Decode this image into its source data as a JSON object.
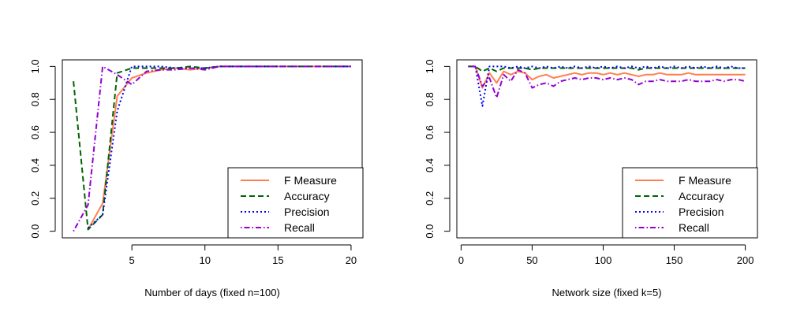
{
  "chart_data": [
    {
      "type": "line",
      "xlabel": "Number of days (fixed n=100)",
      "ylabel": "",
      "xlim": [
        0.24,
        20.76
      ],
      "ylim": [
        -0.04,
        1.04
      ],
      "xticks": [
        5,
        10,
        15,
        20
      ],
      "yticks": [
        0.0,
        0.2,
        0.4,
        0.6,
        0.8,
        1.0
      ],
      "xtick_labels": [
        "5",
        "10",
        "15",
        "20"
      ],
      "ytick_labels": [
        "0.0",
        "0.2",
        "0.4",
        "0.6",
        "0.8",
        "1.0"
      ],
      "grid": false,
      "legend_position": "bottom-right",
      "series": [
        {
          "name": "F Measure",
          "color": "#ff7f50",
          "dash": "solid",
          "x": [
            2,
            3,
            4,
            5,
            6,
            7,
            8,
            9,
            10,
            11,
            12,
            13,
            14,
            15,
            16,
            17,
            18,
            19,
            20
          ],
          "y": [
            0.01,
            0.17,
            0.82,
            0.93,
            0.96,
            0.98,
            0.99,
            0.98,
            0.99,
            1.0,
            1.0,
            1.0,
            1.0,
            1.0,
            1.0,
            1.0,
            1.0,
            1.0,
            1.0
          ]
        },
        {
          "name": "Accuracy",
          "color": "#006400",
          "dash": "longdash",
          "x": [
            1,
            2,
            3,
            4,
            5,
            6,
            7,
            8,
            9,
            10,
            11,
            12,
            13,
            14,
            15,
            16,
            17,
            18,
            19,
            20
          ],
          "y": [
            0.91,
            0.01,
            0.1,
            0.96,
            0.99,
            0.99,
            0.99,
            0.99,
            1.0,
            0.99,
            1.0,
            1.0,
            1.0,
            1.0,
            1.0,
            1.0,
            1.0,
            1.0,
            1.0,
            1.0
          ]
        },
        {
          "name": "Precision",
          "color": "#0000ee",
          "dash": "dotted",
          "x": [
            2,
            3,
            4,
            5,
            6,
            7,
            8,
            9,
            10,
            11,
            12,
            13,
            14,
            15,
            16,
            17,
            18,
            19,
            20
          ],
          "y": [
            0.02,
            0.1,
            0.73,
            1.0,
            1.0,
            1.0,
            0.99,
            0.99,
            0.99,
            1.0,
            1.0,
            1.0,
            1.0,
            1.0,
            1.0,
            1.0,
            1.0,
            1.0,
            1.0
          ]
        },
        {
          "name": "Recall",
          "color": "#9400d3",
          "dash": "dotdash",
          "x": [
            1,
            2,
            3,
            4,
            5,
            6,
            7,
            8,
            9,
            10,
            11,
            12,
            13,
            14,
            15,
            16,
            17,
            18,
            19,
            20
          ],
          "y": [
            0.0,
            0.16,
            1.0,
            0.95,
            0.89,
            0.97,
            0.98,
            0.98,
            0.99,
            0.98,
            1.0,
            1.0,
            1.0,
            1.0,
            1.0,
            1.0,
            1.0,
            1.0,
            1.0,
            1.0
          ]
        }
      ]
    },
    {
      "type": "line",
      "xlabel": "Network size (fixed k=5)",
      "ylabel": "",
      "xlim": [
        -3,
        208
      ],
      "ylim": [
        -0.04,
        1.04
      ],
      "xticks": [
        0,
        50,
        100,
        150,
        200
      ],
      "yticks": [
        0.0,
        0.2,
        0.4,
        0.6,
        0.8,
        1.0
      ],
      "xtick_labels": [
        "0",
        "50",
        "100",
        "150",
        "200"
      ],
      "ytick_labels": [
        "0.0",
        "0.2",
        "0.4",
        "0.6",
        "0.8",
        "1.0"
      ],
      "grid": false,
      "legend_position": "bottom-right",
      "series": [
        {
          "name": "F Measure",
          "color": "#ff7f50",
          "dash": "solid",
          "x": [
            5,
            10,
            15,
            20,
            25,
            30,
            35,
            40,
            45,
            50,
            55,
            60,
            65,
            70,
            75,
            80,
            85,
            90,
            95,
            100,
            105,
            110,
            115,
            120,
            125,
            130,
            135,
            140,
            145,
            150,
            155,
            160,
            165,
            170,
            175,
            180,
            185,
            190,
            195,
            200
          ],
          "y": [
            1.0,
            1.0,
            0.87,
            0.96,
            0.9,
            0.97,
            0.95,
            0.97,
            0.96,
            0.92,
            0.94,
            0.95,
            0.93,
            0.94,
            0.95,
            0.96,
            0.95,
            0.96,
            0.96,
            0.95,
            0.96,
            0.95,
            0.96,
            0.95,
            0.94,
            0.95,
            0.95,
            0.96,
            0.95,
            0.95,
            0.95,
            0.96,
            0.95,
            0.95,
            0.95,
            0.95,
            0.95,
            0.95,
            0.95,
            0.95
          ]
        },
        {
          "name": "Accuracy",
          "color": "#006400",
          "dash": "longdash",
          "x": [
            5,
            10,
            15,
            20,
            25,
            30,
            35,
            40,
            45,
            50,
            55,
            60,
            65,
            70,
            75,
            80,
            85,
            90,
            95,
            100,
            105,
            110,
            115,
            120,
            125,
            130,
            135,
            140,
            145,
            150,
            155,
            160,
            165,
            170,
            175,
            180,
            185,
            190,
            195,
            200
          ],
          "y": [
            1.0,
            1.0,
            0.97,
            0.99,
            0.97,
            0.99,
            0.99,
            0.99,
            0.99,
            0.98,
            0.99,
            0.99,
            0.99,
            0.99,
            0.99,
            0.99,
            0.99,
            0.99,
            0.99,
            0.99,
            0.99,
            0.99,
            0.99,
            0.99,
            0.98,
            0.99,
            0.99,
            0.99,
            0.99,
            0.99,
            0.99,
            0.99,
            0.99,
            0.99,
            0.99,
            0.99,
            0.99,
            0.99,
            0.99,
            0.99
          ]
        },
        {
          "name": "Precision",
          "color": "#0000ee",
          "dash": "dotted",
          "x": [
            5,
            10,
            15,
            20,
            25,
            30,
            35,
            40,
            45,
            50,
            55,
            60,
            65,
            70,
            75,
            80,
            85,
            90,
            95,
            100,
            105,
            110,
            115,
            120,
            125,
            130,
            135,
            140,
            145,
            150,
            155,
            160,
            165,
            170,
            175,
            180,
            185,
            190,
            195,
            200
          ],
          "y": [
            1.0,
            1.0,
            0.76,
            1.0,
            1.0,
            1.0,
            0.99,
            1.0,
            0.99,
            1.0,
            0.99,
            1.0,
            0.99,
            1.0,
            0.99,
            1.0,
            0.99,
            1.0,
            0.99,
            1.0,
            0.99,
            1.0,
            0.99,
            1.0,
            0.99,
            1.0,
            0.99,
            1.0,
            0.99,
            1.0,
            0.99,
            1.0,
            0.99,
            1.0,
            0.99,
            1.0,
            0.99,
            1.0,
            0.99,
            0.99
          ]
        },
        {
          "name": "Recall",
          "color": "#9400d3",
          "dash": "dotdash",
          "x": [
            5,
            10,
            15,
            20,
            25,
            30,
            35,
            40,
            45,
            50,
            55,
            60,
            65,
            70,
            75,
            80,
            85,
            90,
            95,
            100,
            105,
            110,
            115,
            120,
            125,
            130,
            135,
            140,
            145,
            150,
            155,
            160,
            165,
            170,
            175,
            180,
            185,
            190,
            195,
            200
          ],
          "y": [
            1.0,
            1.0,
            0.88,
            0.93,
            0.81,
            0.95,
            0.91,
            0.98,
            0.96,
            0.87,
            0.89,
            0.9,
            0.88,
            0.91,
            0.92,
            0.93,
            0.92,
            0.93,
            0.93,
            0.92,
            0.93,
            0.92,
            0.93,
            0.92,
            0.89,
            0.91,
            0.91,
            0.92,
            0.91,
            0.91,
            0.91,
            0.92,
            0.91,
            0.91,
            0.91,
            0.92,
            0.91,
            0.92,
            0.92,
            0.91
          ]
        }
      ]
    }
  ]
}
